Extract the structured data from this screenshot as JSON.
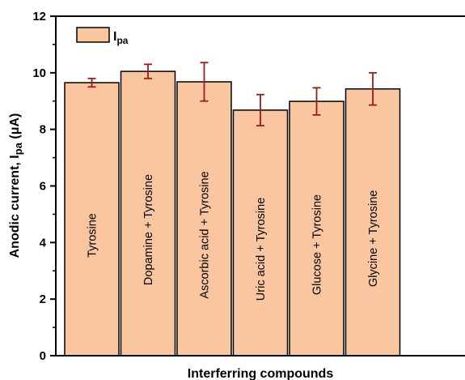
{
  "chart_data": {
    "type": "bar",
    "categories": [
      "Tyrosine",
      "Dopamine + Tyrosine",
      "Ascorbic acid + Tyrosine",
      "Uric acid + Tyrosine",
      "Glucose + Tyrosine",
      "Glycine + Tyrosine"
    ],
    "values": [
      9.65,
      10.05,
      9.68,
      8.68,
      8.99,
      9.43
    ],
    "errors": [
      0.15,
      0.25,
      0.68,
      0.55,
      0.48,
      0.57
    ],
    "xlabel": "Interferring compounds",
    "ylabel_main": "Anodic current, I",
    "ylabel_sub": "pa",
    "ylabel_unit": " (μA)",
    "ylim": [
      0,
      12
    ],
    "yticks": [
      0,
      2,
      4,
      6,
      8,
      10,
      12
    ],
    "legend": {
      "main": "I",
      "sub": "pa",
      "position": "top-left"
    },
    "grid": false,
    "colors": {
      "bar_fill": "#F9C6A0",
      "bar_edge": "#000000",
      "error_bar": "#9B1B1B"
    }
  }
}
